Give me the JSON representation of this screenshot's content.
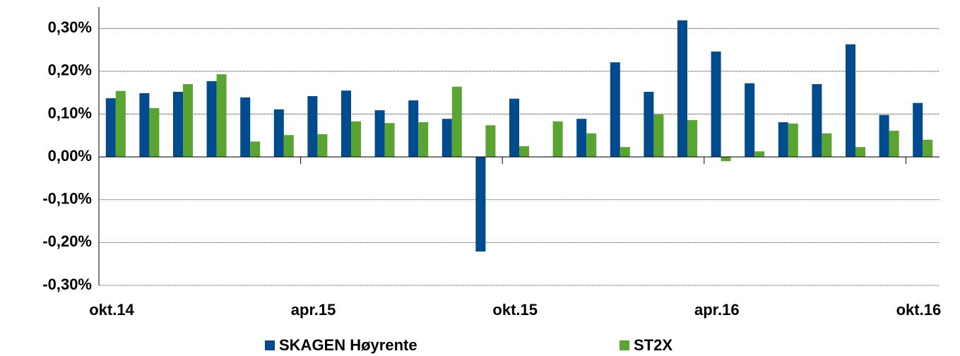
{
  "chart_data": {
    "type": "bar",
    "categories": [
      "okt.14",
      null,
      null,
      null,
      null,
      null,
      "apr.15",
      null,
      null,
      null,
      null,
      null,
      "okt.15",
      null,
      null,
      null,
      null,
      null,
      "apr.16",
      null,
      null,
      null,
      null,
      null,
      "okt.16"
    ],
    "series": [
      {
        "name": "SKAGEN Høyrente",
        "color": "#004B8D",
        "values": [
          0.137,
          0.149,
          0.152,
          0.177,
          0.139,
          0.111,
          0.142,
          0.155,
          0.109,
          0.132,
          0.089,
          -0.221,
          0.136,
          0.001,
          0.089,
          0.221,
          0.152,
          0.319,
          0.246,
          0.172,
          0.081,
          0.17,
          0.263,
          0.098,
          0.126
        ]
      },
      {
        "name": "ST2X",
        "color": "#5AA532",
        "values": [
          0.154,
          0.114,
          0.17,
          0.193,
          0.036,
          0.051,
          0.053,
          0.083,
          0.079,
          0.081,
          0.164,
          0.074,
          0.025,
          0.083,
          0.055,
          0.023,
          0.099,
          0.086,
          -0.01,
          0.013,
          0.078,
          0.055,
          0.023,
          0.061,
          0.04
        ]
      }
    ],
    "ylim": [
      -0.3,
      0.35
    ],
    "yticks": [
      {
        "value": -0.3,
        "label": "-0,30%"
      },
      {
        "value": -0.2,
        "label": "-0,20%"
      },
      {
        "value": -0.1,
        "label": "-0,10%"
      },
      {
        "value": 0,
        "label": "0,00%"
      },
      {
        "value": 0.1,
        "label": "0,10%"
      },
      {
        "value": 0.2,
        "label": "0,20%"
      },
      {
        "value": 0.3,
        "label": "0,30%"
      }
    ],
    "grid": true,
    "legend": "bottom"
  }
}
